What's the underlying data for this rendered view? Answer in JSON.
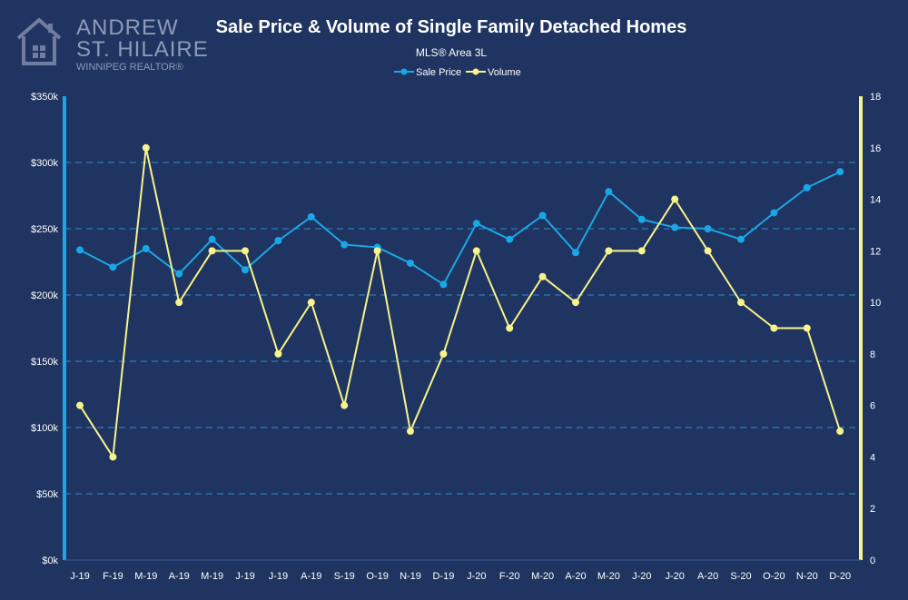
{
  "logo": {
    "line1": "ANDREW",
    "line2": "ST. HILAIRE",
    "line3": "WINNIPEG REALTOR®",
    "icon": "house-icon"
  },
  "colors": {
    "background": "#1f3460",
    "sale_price": "#1aa7e6",
    "volume": "#f8f38a",
    "gridline": "#2a8fd0",
    "left_axis": "#1aa7e6",
    "right_axis": "#f8f38a"
  },
  "chart_data": {
    "type": "line",
    "title": "Sale Price & Volume of Single Family Detached Homes",
    "subtitle": "MLS® Area 3L",
    "categories": [
      "J-19",
      "F-19",
      "M-19",
      "A-19",
      "M-19",
      "J-19",
      "J-19",
      "A-19",
      "S-19",
      "O-19",
      "N-19",
      "D-19",
      "J-20",
      "F-20",
      "M-20",
      "A-20",
      "M-20",
      "J-20",
      "J-20",
      "A-20",
      "S-20",
      "O-20",
      "N-20",
      "D-20"
    ],
    "series": [
      {
        "name": "Sale Price",
        "axis": "left",
        "values": [
          234000,
          221000,
          235000,
          216000,
          242000,
          219000,
          241000,
          259000,
          238000,
          236000,
          224000,
          208000,
          254000,
          242000,
          260000,
          232000,
          278000,
          257000,
          251000,
          250000,
          242000,
          262000,
          281000,
          293000
        ]
      },
      {
        "name": "Volume",
        "axis": "right",
        "values": [
          6,
          4,
          16,
          10,
          12,
          12,
          8,
          10,
          6,
          12,
          5,
          8,
          12,
          9,
          11,
          10,
          12,
          12,
          14,
          12,
          10,
          9,
          9,
          5
        ]
      }
    ],
    "y_left": {
      "lim": [
        0,
        350000
      ],
      "ticks": [
        0,
        50000,
        100000,
        150000,
        200000,
        250000,
        300000,
        350000
      ],
      "tick_labels": [
        "$0k",
        "$50k",
        "$100k",
        "$150k",
        "$200k",
        "$250k",
        "$300k",
        "$350k"
      ]
    },
    "y_right": {
      "lim": [
        0,
        18
      ],
      "ticks": [
        0,
        2,
        4,
        6,
        8,
        10,
        12,
        14,
        16,
        18
      ],
      "tick_labels": [
        "0",
        "2",
        "4",
        "6",
        "8",
        "10",
        "12",
        "14",
        "16",
        "18"
      ]
    },
    "grid": true,
    "legend": "top-center"
  }
}
